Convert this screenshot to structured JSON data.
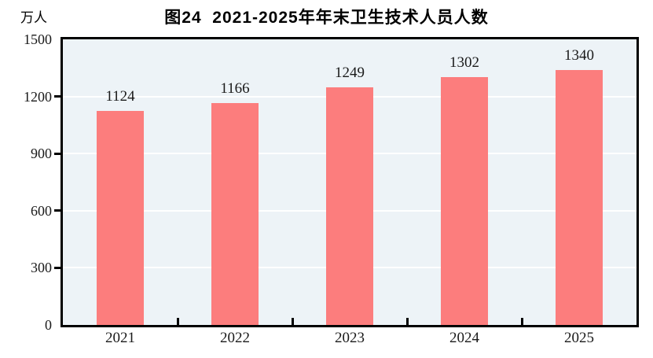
{
  "figure": {
    "title": "图24  2021-2025年年末卫生技术人员人数",
    "unit_label": "万人"
  },
  "chart_data": {
    "type": "bar",
    "title": "图24  2021-2025年年末卫生技术人员人数",
    "categories": [
      "2021",
      "2022",
      "2023",
      "2024",
      "2025"
    ],
    "values": [
      1124,
      1166,
      1249,
      1302,
      1340
    ],
    "xlabel": "",
    "ylabel": "万人",
    "ylim": [
      0,
      1500
    ],
    "yticks": [
      0,
      300,
      600,
      900,
      1200,
      1500
    ],
    "grid": true,
    "legend": "none",
    "colors": {
      "bar": "#FC7D7D",
      "plot_background": "#EDF3F7",
      "gridline": "#FFFFFF",
      "axis": "#000000",
      "text": "#1A1A1A"
    }
  }
}
